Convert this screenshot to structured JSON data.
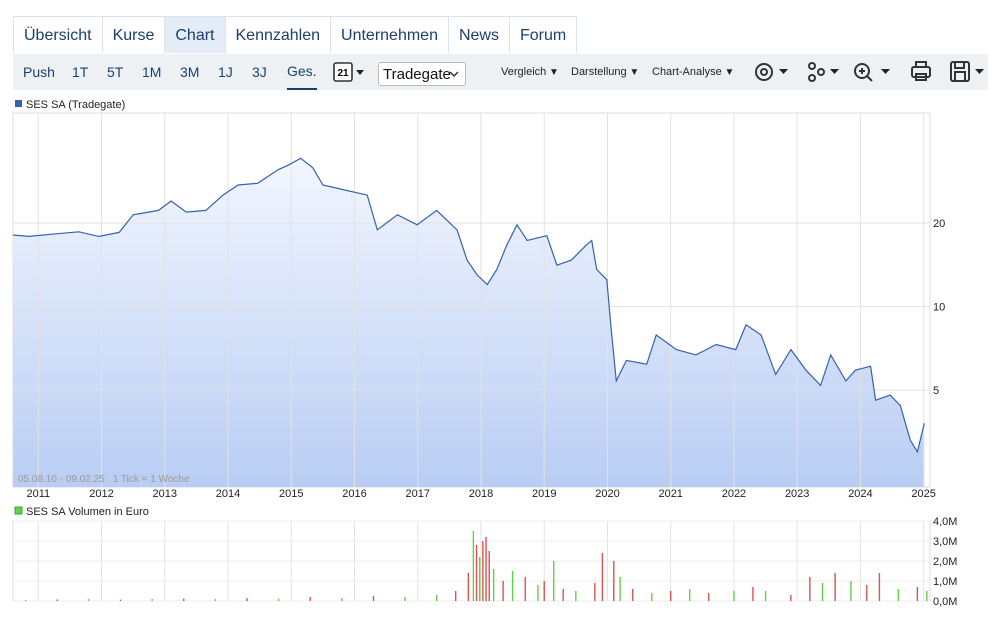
{
  "tabs": {
    "items": [
      "Übersicht",
      "Kurse",
      "Chart",
      "Kennzahlen",
      "Unternehmen",
      "News",
      "Forum"
    ],
    "active": 2
  },
  "toolbar": {
    "periods": [
      "Push",
      "1T",
      "5T",
      "1M",
      "3M",
      "1J",
      "3J",
      "Ges."
    ],
    "active_period": 7,
    "calendar_day": "21",
    "exchange": "Tradegate",
    "menus": [
      "Vergleich",
      "Darstellung",
      "Chart-Analyse"
    ]
  },
  "chart_data": [
    {
      "type": "area",
      "log_scale": true,
      "grid": true,
      "annotations": [
        "05.08.10 - 09.02.25",
        "1 Tick = 1 Woche"
      ],
      "x": [
        2010.6,
        2010.85,
        2011.3,
        2011.64,
        2011.96,
        2012.28,
        2012.5,
        2012.9,
        2013.1,
        2013.34,
        2013.65,
        2013.92,
        2014.16,
        2014.47,
        2014.79,
        2014.95,
        2015.15,
        2015.34,
        2015.5,
        2015.81,
        2016.2,
        2016.36,
        2016.68,
        2016.99,
        2017.3,
        2017.62,
        2017.78,
        2017.94,
        2018.1,
        2018.25,
        2018.41,
        2018.57,
        2018.73,
        2019.04,
        2019.2,
        2019.43,
        2019.67,
        2019.75,
        2019.83,
        2019.99,
        2020.06,
        2020.14,
        2020.3,
        2020.62,
        2020.77,
        2021.09,
        2021.4,
        2021.72,
        2022.03,
        2022.19,
        2022.43,
        2022.66,
        2022.9,
        2023.14,
        2023.37,
        2023.53,
        2023.77,
        2023.92,
        2024.16,
        2024.24,
        2024.47,
        2024.63,
        2024.79,
        2024.9,
        2025.01
      ],
      "series": [
        {
          "name": "SES SA (Tradegate)",
          "color": "#3461b1",
          "values": [
            18.1,
            17.9,
            18.3,
            18.6,
            17.9,
            18.5,
            21.4,
            22.2,
            24.0,
            21.9,
            22.2,
            25.2,
            27.4,
            27.8,
            31.1,
            32.3,
            34.2,
            31.6,
            27.4,
            26.4,
            25.2,
            18.9,
            21.4,
            19.7,
            22.2,
            18.9,
            14.7,
            13.0,
            12.0,
            13.6,
            16.7,
            19.7,
            17.3,
            18.0,
            14.1,
            14.7,
            16.7,
            17.3,
            13.6,
            12.5,
            8.2,
            5.4,
            6.4,
            6.2,
            7.9,
            7.0,
            6.7,
            7.3,
            7.0,
            8.6,
            7.9,
            5.7,
            7.0,
            5.9,
            5.2,
            6.7,
            5.4,
            5.9,
            6.1,
            4.6,
            4.8,
            4.4,
            3.3,
            3.0,
            3.8
          ]
        }
      ],
      "xlim": [
        2010.6,
        2025.1
      ],
      "xticks": [
        2011,
        2012,
        2013,
        2014,
        2015,
        2016,
        2017,
        2018,
        2019,
        2020,
        2021,
        2022,
        2023,
        2024,
        2025
      ],
      "ylim": [
        2.24,
        49.8
      ],
      "yticks": [
        5,
        10,
        20
      ]
    },
    {
      "type": "bar",
      "grid": true,
      "x": [
        2010.8,
        2011.3,
        2011.8,
        2012.3,
        2012.8,
        2013.3,
        2013.8,
        2014.3,
        2014.8,
        2015.3,
        2015.8,
        2016.3,
        2016.8,
        2017.3,
        2017.6,
        2017.8,
        2017.88,
        2017.93,
        2017.98,
        2018.03,
        2018.08,
        2018.13,
        2018.2,
        2018.35,
        2018.5,
        2018.7,
        2018.9,
        2019.0,
        2019.15,
        2019.3,
        2019.5,
        2019.8,
        2019.92,
        2020.1,
        2020.2,
        2020.4,
        2020.7,
        2021.0,
        2021.3,
        2021.6,
        2022.0,
        2022.3,
        2022.5,
        2022.9,
        2023.2,
        2023.4,
        2023.6,
        2023.85,
        2024.1,
        2024.3,
        2024.6,
        2024.9,
        2025.05
      ],
      "series": [
        {
          "name": "SES SA Volumen in Euro",
          "color": "#5fd24a",
          "values": [
            50000,
            80000,
            100000,
            70000,
            100000,
            120000,
            100000,
            150000,
            120000,
            200000,
            150000,
            250000,
            200000,
            300000,
            500000,
            1400000,
            3500000,
            2800000,
            2200000,
            3000000,
            3200000,
            2500000,
            1600000,
            1000000,
            1500000,
            1200000,
            800000,
            1000000,
            2000000,
            600000,
            500000,
            900000,
            2400000,
            2000000,
            1200000,
            600000,
            400000,
            500000,
            600000,
            400000,
            500000,
            700000,
            500000,
            300000,
            1200000,
            900000,
            1400000,
            1000000,
            800000,
            1400000,
            600000,
            700000,
            500000
          ],
          "colors": [
            "#5fd24a",
            "#d9534f",
            "#5fd24a",
            "#d9534f",
            "#5fd24a",
            "#d9534f",
            "#5fd24a",
            "#d9534f",
            "#5fd24a",
            "#d9534f",
            "#5fd24a",
            "#d9534f",
            "#5fd24a",
            "#5fd24a",
            "#d9534f",
            "#d9534f",
            "#5fd24a",
            "#d9534f",
            "#5fd24a",
            "#d9534f",
            "#d9534f",
            "#d9534f",
            "#5fd24a",
            "#d9534f",
            "#5fd24a",
            "#d9534f",
            "#5fd24a",
            "#d9534f",
            "#5fd24a",
            "#d9534f",
            "#5fd24a",
            "#d9534f",
            "#d9534f",
            "#d9534f",
            "#5fd24a",
            "#d9534f",
            "#5fd24a",
            "#d9534f",
            "#5fd24a",
            "#d9534f",
            "#5fd24a",
            "#d9534f",
            "#5fd24a",
            "#d9534f",
            "#d9534f",
            "#5fd24a",
            "#d9534f",
            "#5fd24a",
            "#d9534f",
            "#d9534f",
            "#5fd24a",
            "#d9534f",
            "#5fd24a"
          ]
        }
      ],
      "xlim": [
        2010.6,
        2025.1
      ],
      "ylim": [
        0,
        4000000
      ],
      "yticks": [
        {
          "value": 0,
          "label": "0,0M"
        },
        {
          "value": 1000000,
          "label": "1,0M"
        },
        {
          "value": 2000000,
          "label": "2,0M"
        },
        {
          "value": 3000000,
          "label": "3,0M"
        },
        {
          "value": 4000000,
          "label": "4,0M"
        }
      ]
    }
  ]
}
